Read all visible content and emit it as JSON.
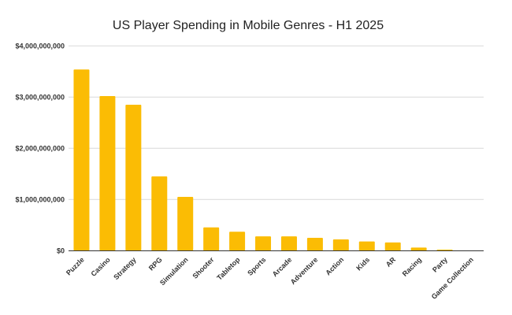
{
  "chart_data": {
    "type": "bar",
    "title": "US Player Spending in Mobile Genres - H1 2025",
    "xlabel": "",
    "ylabel": "",
    "categories": [
      "Puzzle",
      "Casino",
      "Strategy",
      "RPG",
      "Simulation",
      "Shooter",
      "Tabletop",
      "Sports",
      "Arcade",
      "Adventure",
      "Action",
      "Kids",
      "AR",
      "Racing",
      "Party",
      "Game Collection"
    ],
    "values": [
      3540000000,
      3020000000,
      2850000000,
      1450000000,
      1050000000,
      455000000,
      370000000,
      280000000,
      280000000,
      250000000,
      220000000,
      180000000,
      160000000,
      60000000,
      20000000,
      0
    ],
    "ylim": [
      0,
      4000000000
    ],
    "yticks": [
      0,
      1000000000,
      2000000000,
      3000000000,
      4000000000
    ],
    "ytick_labels": [
      "$0",
      "$1,000,000,000",
      "$2,000,000,000",
      "$3,000,000,000",
      "$4,000,000,000"
    ],
    "grid": true,
    "legend": "none",
    "bar_color": "#FBBC04"
  }
}
